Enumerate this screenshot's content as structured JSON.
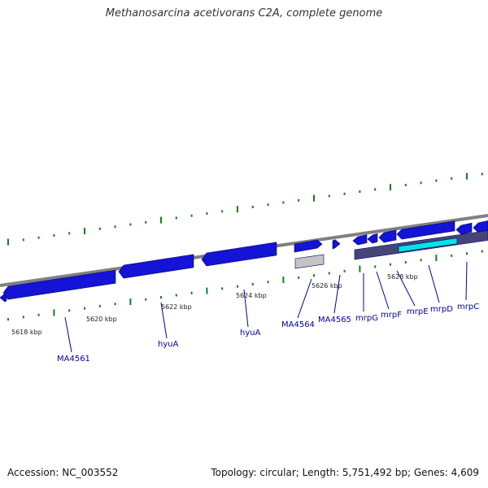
{
  "title": "Methanosarcina acetivorans C2A, complete genome",
  "footer": {
    "accession": "Accession: NC_003552",
    "summary": "Topology: circular; Length: 5,751,492 bp; Genes: 4,609"
  },
  "colors": {
    "backbone": "#808080",
    "gene_blue": "#1414d6",
    "gene_dark": "#45457a",
    "gene_highlight": "#00e5e5",
    "gene_grey": "#c4c4c4",
    "tick": "#1a7a1a",
    "label": "#0000aa"
  },
  "scale": {
    "labels": [
      "5618 kbp",
      "5620 kbp",
      "5622 kbp",
      "5624 kbp",
      "5626 kbp",
      "5628 kbp"
    ]
  },
  "genes": [
    {
      "name": "MA4561"
    },
    {
      "name": "hyuA"
    },
    {
      "name": "hyuA"
    },
    {
      "name": "MA4564"
    },
    {
      "name": "MA4565"
    },
    {
      "name": "mrpG"
    },
    {
      "name": "mrpF"
    },
    {
      "name": "mrpE"
    },
    {
      "name": "mrpD"
    },
    {
      "name": "mrpC"
    }
  ]
}
